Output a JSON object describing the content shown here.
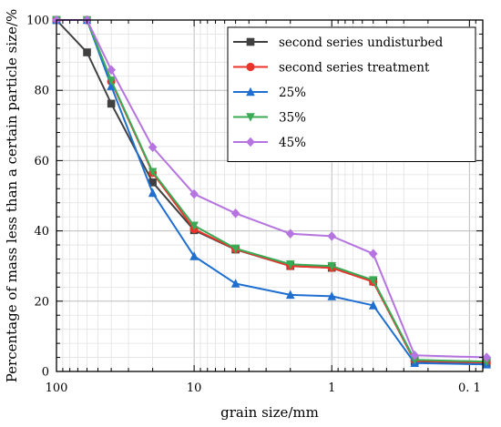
{
  "chart_data": {
    "type": "line",
    "xlabel": "grain size/mm",
    "ylabel": "Percentage of mass less than a certain particle size/%",
    "xscale": "log",
    "x_reversed": true,
    "xlim": [
      100,
      0.08
    ],
    "ylim": [
      0,
      100
    ],
    "x_ticks": [
      {
        "value": 100,
        "label": "100"
      },
      {
        "value": 10,
        "label": "10"
      },
      {
        "value": 1,
        "label": "1"
      },
      {
        "value": 0.1,
        "label": "0. 1"
      }
    ],
    "y_ticks": [
      0,
      20,
      40,
      60,
      80,
      100
    ],
    "grid": true,
    "legend_position": "top-right",
    "x": [
      100,
      60,
      40,
      20,
      10,
      5,
      2,
      1,
      0.5,
      0.25,
      0.075
    ],
    "series": [
      {
        "name": "second series undisturbed",
        "color": "#404040",
        "marker": "square",
        "values": [
          100,
          90.8,
          76.2,
          53.8,
          40.2,
          34.7,
          30.0,
          29.5,
          25.6,
          2.9,
          2.4
        ]
      },
      {
        "name": "second series treatment",
        "color": "#e8352c",
        "marker": "circle",
        "values": [
          100,
          100,
          82.5,
          56.5,
          40.5,
          34.8,
          30.0,
          29.5,
          25.5,
          3.0,
          2.5
        ]
      },
      {
        "name": "25%",
        "color": "#1f6fd1",
        "marker": "triangle-up",
        "values": [
          100,
          100,
          81.2,
          50.8,
          32.8,
          25.0,
          21.8,
          21.4,
          18.8,
          2.4,
          2.0
        ]
      },
      {
        "name": "35%",
        "color": "#3aaa55",
        "marker": "triangle-down",
        "values": [
          100,
          100,
          82.8,
          56.8,
          41.5,
          35.0,
          30.5,
          30.0,
          26.0,
          3.3,
          2.8
        ]
      },
      {
        "name": "45%",
        "color": "#b574e0",
        "marker": "diamond",
        "values": [
          100,
          100,
          85.8,
          63.8,
          50.5,
          45.0,
          39.2,
          38.5,
          33.5,
          4.6,
          4.0
        ]
      }
    ]
  }
}
